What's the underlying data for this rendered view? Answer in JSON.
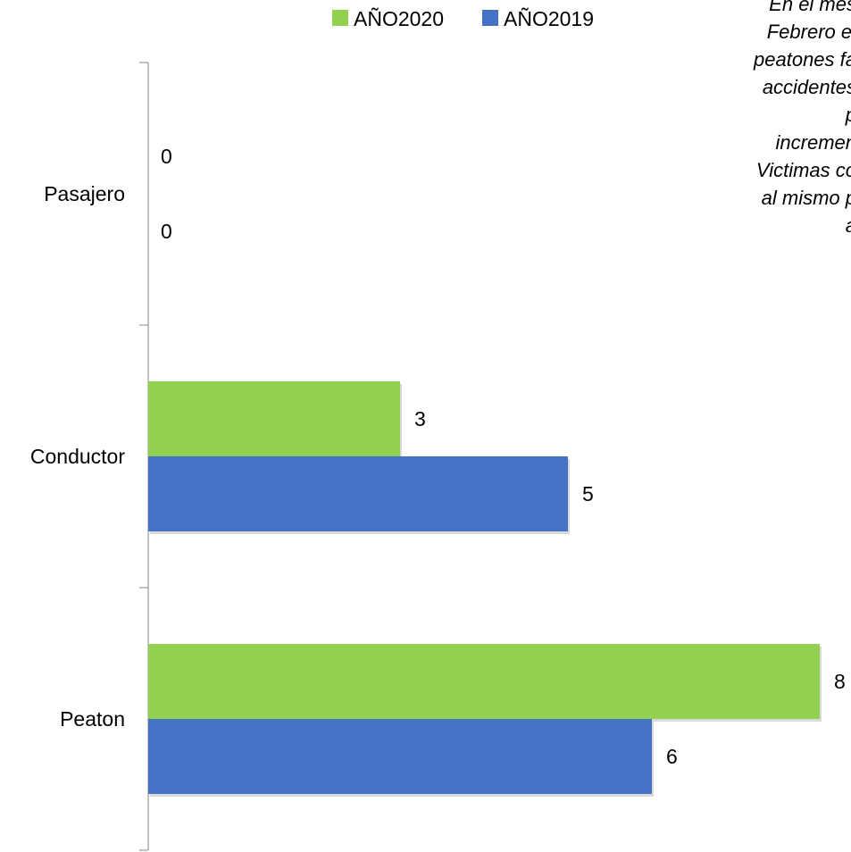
{
  "chart_data": {
    "type": "bar",
    "orientation": "horizontal",
    "title": "",
    "xlabel": "",
    "ylabel": "",
    "categories": [
      "Pasajero",
      "Conductor",
      "Peaton"
    ],
    "series": [
      {
        "name": "AÑO2020",
        "color": "#92d050",
        "values": [
          0,
          3,
          8
        ]
      },
      {
        "name": "AÑO2019",
        "color": "#4472c4",
        "values": [
          0,
          5,
          6
        ]
      }
    ],
    "xlim": [
      0,
      8
    ],
    "grid": false,
    "legend": "top",
    "annotation_lines": [
      "En el mes",
      "Febrero el",
      "peatones fa",
      "accidentes",
      "p",
      "incremen",
      "Victimas co",
      "al mismo p",
      "a"
    ]
  }
}
